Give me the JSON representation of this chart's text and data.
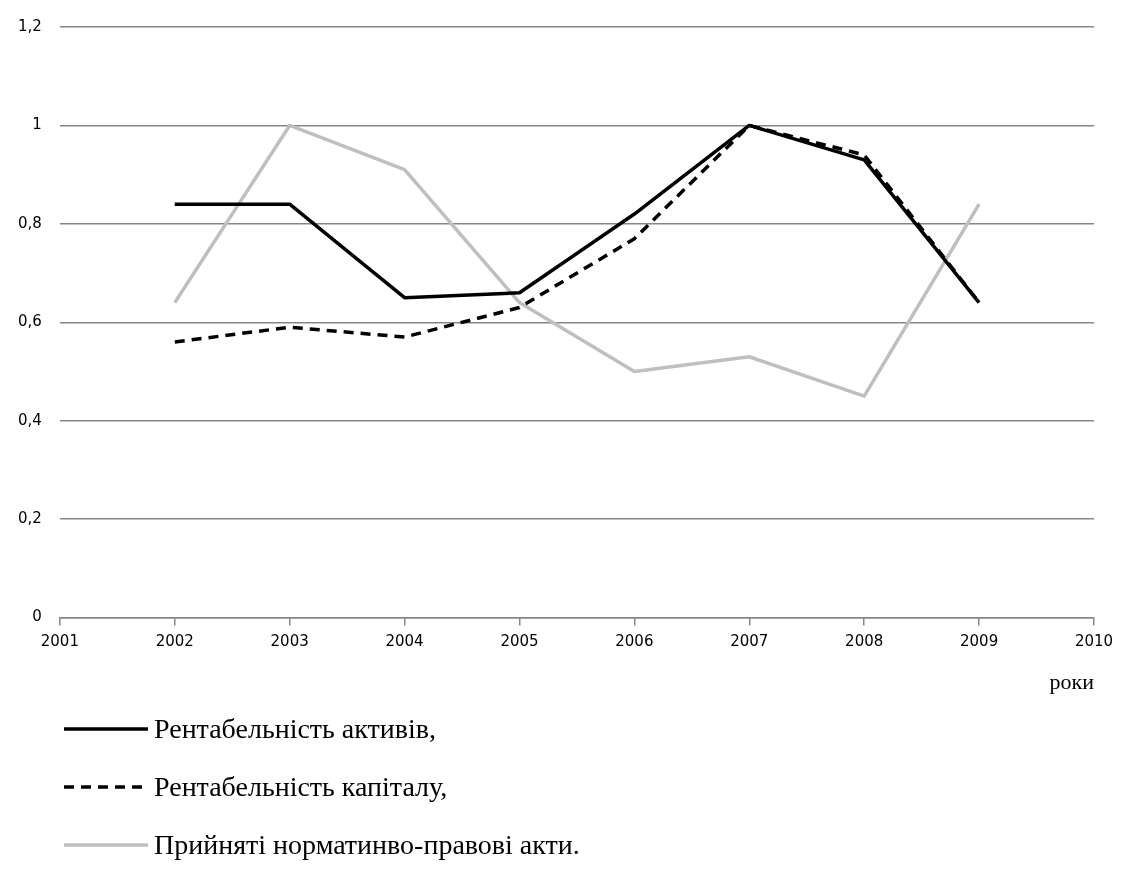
{
  "chart_data": {
    "type": "line",
    "xlabel": "роки",
    "x": [
      2002,
      2003,
      2004,
      2005,
      2006,
      2007,
      2008,
      2009
    ],
    "xlim": [
      2001,
      2010
    ],
    "xticks": [
      2001,
      2002,
      2003,
      2004,
      2005,
      2006,
      2007,
      2008,
      2009,
      2010
    ],
    "ylim": [
      0,
      1.2
    ],
    "yticks": [
      0,
      {
        "value": 0.2,
        "label": "0,2"
      },
      {
        "value": 0.4,
        "label": "0,4"
      },
      {
        "value": 0.6,
        "label": "0,6"
      },
      {
        "value": 0.8,
        "label": "0,8"
      },
      1,
      {
        "value": 1.2,
        "label": "1,2"
      }
    ],
    "grid": "y",
    "legend": "bottom",
    "marker": "none",
    "series": [
      {
        "name": "Рентабельність активів,",
        "color": "#000000",
        "line_style": "solid",
        "values": [
          0.84,
          0.84,
          0.65,
          0.66,
          0.82,
          1.0,
          0.93,
          0.64
        ]
      },
      {
        "name": "Рентабельність капіталу,",
        "color": "#000000",
        "line_style": "dashed",
        "values": [
          0.56,
          0.59,
          0.57,
          0.63,
          0.77,
          1.0,
          0.94,
          0.64
        ]
      },
      {
        "name": "Прийняті норматинво-правові акти.",
        "color": "#bfbfbf",
        "line_style": "solid",
        "values": [
          0.64,
          1.0,
          0.91,
          0.64,
          0.5,
          0.53,
          0.45,
          0.84
        ]
      }
    ]
  }
}
